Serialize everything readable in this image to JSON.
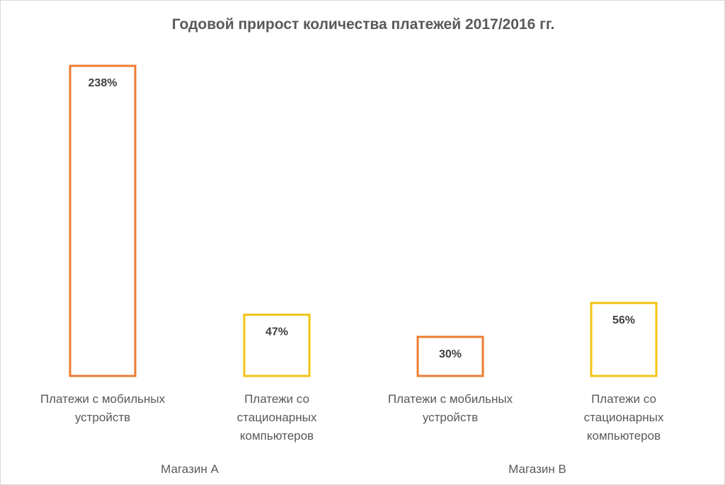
{
  "chart_data": {
    "type": "bar",
    "title": "Годовой прирост количества платежей 2017/2016 гг.",
    "xlabel": "",
    "ylabel": "",
    "ylim": [
      0,
      250
    ],
    "grid": false,
    "legend": "none",
    "unit": "%",
    "groups": [
      {
        "name": "Магазин А",
        "bars": [
          {
            "label": [
              "Платежи с мобильных",
              "устройств"
            ],
            "value": 238,
            "display": "238%",
            "color": "#ED7D31"
          },
          {
            "label": [
              "Платежи со",
              "стационарных",
              "компьютеров"
            ],
            "value": 47,
            "display": "47%",
            "color": "#F2C414"
          }
        ]
      },
      {
        "name": "Магазин В",
        "bars": [
          {
            "label": [
              "Платежи с мобильных",
              "устройств"
            ],
            "value": 30,
            "display": "30%",
            "color": "#ED7D31"
          },
          {
            "label": [
              "Платежи со",
              "стационарных",
              "компьютеров"
            ],
            "value": 56,
            "display": "56%",
            "color": "#F2C414"
          }
        ]
      }
    ]
  }
}
